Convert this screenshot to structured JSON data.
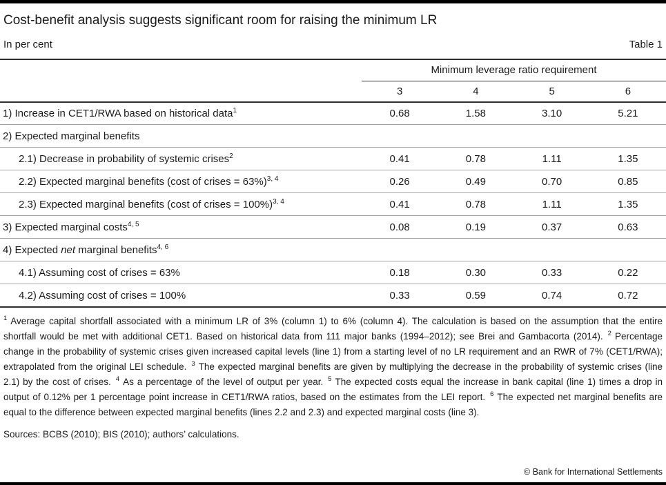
{
  "page": {
    "title": "Cost-benefit analysis suggests significant room for raising the minimum LR",
    "subtitle_left": "In per cent",
    "subtitle_right": "Table 1",
    "copyright": "© Bank for International Settlements"
  },
  "table": {
    "group_header": "Minimum leverage ratio requirement",
    "columns": [
      "3",
      "4",
      "5",
      "6"
    ],
    "rows": [
      {
        "label": "1) Increase in CET1/RWA based on historical data",
        "sup": "1",
        "values": [
          "0.68",
          "1.58",
          "3.10",
          "5.21"
        ]
      },
      {
        "label": "2) Expected marginal benefits",
        "sup": "",
        "values": [
          "",
          "",
          "",
          ""
        ]
      },
      {
        "label": "2.1) Decrease in probability of systemic crises",
        "sup": "2",
        "values": [
          "0.41",
          "0.78",
          "1.11",
          "1.35"
        ]
      },
      {
        "label": "2.2) Expected marginal benefits (cost of crises = 63%)",
        "sup": "3, 4",
        "values": [
          "0.26",
          "0.49",
          "0.70",
          "0.85"
        ]
      },
      {
        "label": "2.3) Expected marginal benefits (cost of crises = 100%)",
        "sup": "3, 4",
        "values": [
          "0.41",
          "0.78",
          "1.11",
          "1.35"
        ]
      },
      {
        "label": "3) Expected marginal costs",
        "sup": "4, 5",
        "values": [
          "0.08",
          "0.19",
          "0.37",
          "0.63"
        ]
      },
      {
        "label_pre": "4) Expected ",
        "label_italic": "net",
        "label_post": " marginal benefits",
        "sup": "4, 6",
        "values": [
          "",
          "",
          "",
          ""
        ]
      },
      {
        "label": "4.1) Assuming cost of crises = 63%",
        "sup": "",
        "values": [
          "0.18",
          "0.30",
          "0.33",
          "0.22"
        ]
      },
      {
        "label": "4.2) Assuming cost of crises = 100%",
        "sup": "",
        "values": [
          "0.33",
          "0.59",
          "0.74",
          "0.72"
        ]
      }
    ]
  },
  "footnotes": {
    "items": [
      {
        "num": "1",
        "text": "Average capital shortfall associated with a minimum LR of 3% (column 1) to 6% (column 4). The calculation is based on the assumption that the entire shortfall would be met with additional CET1. Based on historical data from 111 major banks (1994–2012); see Brei and Gambacorta (2014)."
      },
      {
        "num": "2",
        "text": "Percentage change in the probability of systemic crises given increased capital levels (line 1) from a starting level of no LR requirement and an RWR of 7% (CET1/RWA); extrapolated from the original LEI schedule."
      },
      {
        "num": "3",
        "text": "The expected marginal benefits are given by multiplying the decrease in the probability of systemic crises (line 2.1) by the cost of crises."
      },
      {
        "num": "4",
        "text": "As a percentage of the level of output per year."
      },
      {
        "num": "5",
        "text": "The expected costs equal the increase in bank capital (line 1) times a drop in output of 0.12% per 1 percentage point increase in CET1/RWA ratios, based on the estimates from the LEI report."
      },
      {
        "num": "6",
        "text": "The expected net marginal benefits are equal to the difference between expected marginal benefits (lines 2.2 and 2.3) and expected marginal costs (line 3)."
      }
    ],
    "sources": "Sources: BCBS (2010); BIS (2010); authors’ calculations."
  }
}
